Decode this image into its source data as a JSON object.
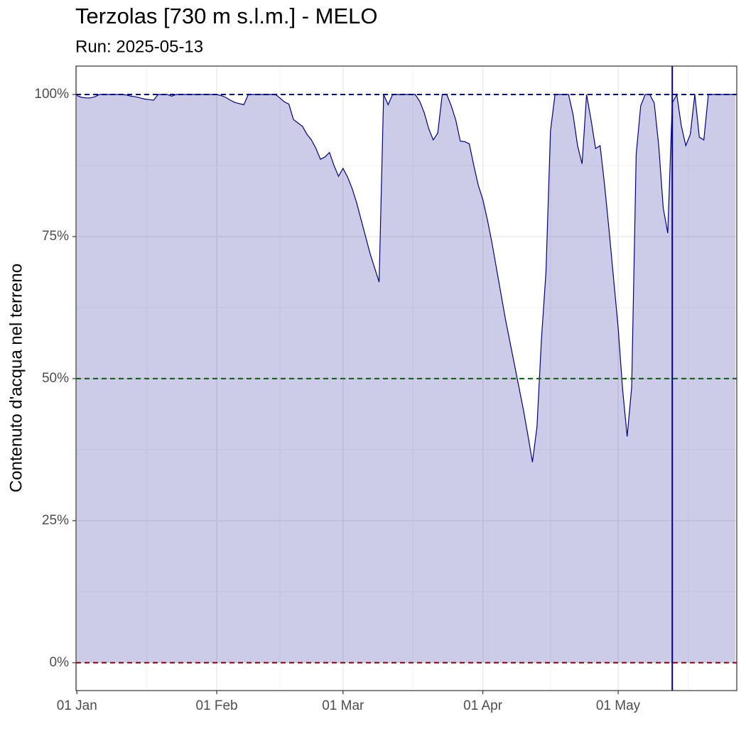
{
  "chart_data": {
    "type": "area",
    "title": "Terzolas [730 m s.l.m.] - MELO",
    "subtitle": "Run: 2025-05-13",
    "ylabel": "Contenuto d'acqua nel terreno",
    "x": [
      0,
      1,
      2,
      3,
      4,
      5,
      6,
      7,
      8,
      9,
      10,
      11,
      12,
      13,
      14,
      15,
      16,
      17,
      18,
      19,
      20,
      21,
      22,
      23,
      24,
      25,
      26,
      27,
      28,
      29,
      30,
      31,
      32,
      33,
      34,
      35,
      36,
      37,
      38,
      39,
      40,
      41,
      42,
      43,
      44,
      45,
      46,
      47,
      48,
      49,
      50,
      51,
      52,
      53,
      54,
      55,
      56,
      57,
      58,
      59,
      60,
      61,
      62,
      63,
      64,
      65,
      66,
      67,
      68,
      69,
      70,
      71,
      72,
      73,
      74,
      75,
      76,
      77,
      78,
      79,
      80,
      81,
      82,
      83,
      84,
      85,
      86,
      87,
      88,
      89,
      90,
      91,
      92,
      93,
      94,
      95,
      96,
      97,
      98,
      99,
      100,
      101,
      102,
      103,
      104,
      105,
      106,
      107,
      108,
      109,
      110,
      111,
      112,
      113,
      114,
      115,
      116,
      117,
      118,
      119,
      120,
      121,
      122,
      123,
      124,
      125,
      126,
      127,
      128,
      129,
      130,
      131,
      132,
      133,
      134,
      135,
      136,
      137,
      138,
      139,
      140,
      141,
      142,
      143,
      144,
      145,
      146
    ],
    "values": [
      99.8,
      99.5,
      99.4,
      99.4,
      99.6,
      100,
      100,
      100,
      100,
      100,
      100,
      99.9,
      99.7,
      99.6,
      99.4,
      99.2,
      99.1,
      99,
      100,
      100,
      100,
      99.7,
      100,
      100,
      100,
      100,
      100,
      100,
      100,
      100,
      100,
      100,
      99.8,
      99.5,
      99,
      98.6,
      98.4,
      98.2,
      100,
      100,
      100,
      100,
      100,
      100,
      100,
      99.4,
      98.7,
      98.3,
      95.6,
      95,
      94.4,
      93,
      92,
      90.5,
      88.6,
      89,
      89.8,
      87.5,
      85.6,
      87,
      85.5,
      83.5,
      81,
      78,
      75,
      72,
      69.5,
      67,
      100,
      98.2,
      100,
      100,
      100,
      100,
      100,
      100,
      98.8,
      96.8,
      94,
      92,
      93.2,
      100,
      100,
      98,
      95.5,
      91.8,
      91.7,
      91.3,
      87.5,
      84,
      81.5,
      78,
      74,
      69.5,
      65,
      60.5,
      56.5,
      52.5,
      48.5,
      44.5,
      40,
      35.3,
      41.5,
      57,
      68.8,
      93.6,
      100,
      100,
      100,
      100,
      96.5,
      91,
      87.8,
      100,
      95.5,
      90.5,
      91,
      84,
      76,
      67.5,
      59,
      48,
      39.8,
      48.5,
      89.5,
      98,
      100,
      100,
      98.5,
      91,
      80,
      75.6,
      98.5,
      100,
      94.5,
      91,
      93,
      100,
      92.5,
      92,
      100,
      100,
      100,
      100,
      100,
      100,
      100
    ],
    "color": "#00008b",
    "fill": "#00008b",
    "fill_alpha": 0.2,
    "xlim": [
      -0.2,
      146.3
    ],
    "ylim": [
      -4.9,
      105
    ],
    "xticks": [
      {
        "value": 0,
        "label": "01 Jan"
      },
      {
        "value": 31,
        "label": "01 Feb"
      },
      {
        "value": 59,
        "label": "01 Mar"
      },
      {
        "value": 90,
        "label": "01 Apr"
      },
      {
        "value": 120,
        "label": "01 May"
      }
    ],
    "xminorticks": [
      15.5,
      45,
      74.5,
      105,
      135.5
    ],
    "yticks": [
      {
        "value": 0,
        "label": "0%"
      },
      {
        "value": 25,
        "label": "25%"
      },
      {
        "value": 50,
        "label": "50%"
      },
      {
        "value": 75,
        "label": "75%"
      },
      {
        "value": 100,
        "label": "100%"
      }
    ],
    "yminorticks": [
      12.5,
      37.5,
      62.5,
      87.5
    ],
    "grid": true,
    "hlines": [
      {
        "value": 100,
        "color": "#00008b"
      },
      {
        "value": 50,
        "color": "#006400"
      },
      {
        "value": 0,
        "color": "#8b0000"
      }
    ],
    "vline": {
      "value": 132,
      "color": "#00008b"
    }
  }
}
